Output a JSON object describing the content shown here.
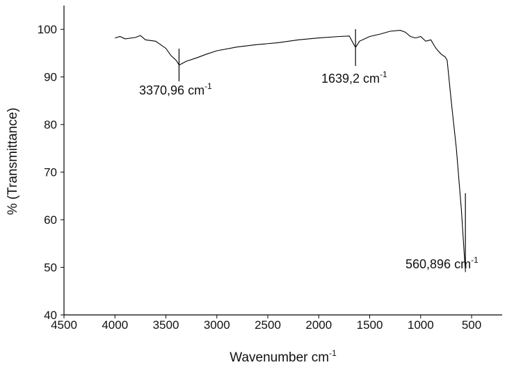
{
  "chart_data": {
    "type": "line",
    "x_label": "Wavenumber cm",
    "x_label_sup": "-1",
    "y_label": "% (Transmittance)",
    "color": "#000000",
    "x": [
      4000,
      3950,
      3900,
      3800,
      3750,
      3700,
      3600,
      3500,
      3450,
      3400,
      3370,
      3300,
      3200,
      3100,
      3000,
      2800,
      2600,
      2400,
      2200,
      2000,
      1800,
      1700,
      1660,
      1639,
      1600,
      1500,
      1400,
      1300,
      1200,
      1150,
      1100,
      1050,
      1000,
      950,
      900,
      850,
      800,
      760,
      740,
      700,
      650,
      600,
      570,
      560
    ],
    "values": [
      98.2,
      98.5,
      98,
      98.3,
      98.7,
      97.8,
      97.5,
      96,
      94.5,
      93.5,
      92.5,
      93.3,
      94,
      94.8,
      95.5,
      96.3,
      96.8,
      97.2,
      97.8,
      98.2,
      98.5,
      98.6,
      97,
      96.2,
      97.5,
      98.5,
      99,
      99.6,
      99.8,
      99.4,
      98.5,
      98.2,
      98.5,
      97.5,
      97.8,
      96,
      94.8,
      94.2,
      93.5,
      85,
      75,
      62,
      52,
      49
    ],
    "xlim": [
      4500,
      200
    ],
    "ylim": [
      40,
      105
    ],
    "xticks": [
      4500,
      4000,
      3500,
      3000,
      2500,
      2000,
      1500,
      1000,
      500
    ],
    "yticks": [
      40,
      50,
      60,
      70,
      80,
      90,
      100
    ],
    "annotations": [
      {
        "x": 3370.96,
        "label": "3370,96 cm",
        "sup": "-1"
      },
      {
        "x": 1639.2,
        "label": "1639,2 cm",
        "sup": "-1"
      },
      {
        "x": 560.896,
        "label": "560,896 cm",
        "sup": "-1"
      }
    ]
  }
}
